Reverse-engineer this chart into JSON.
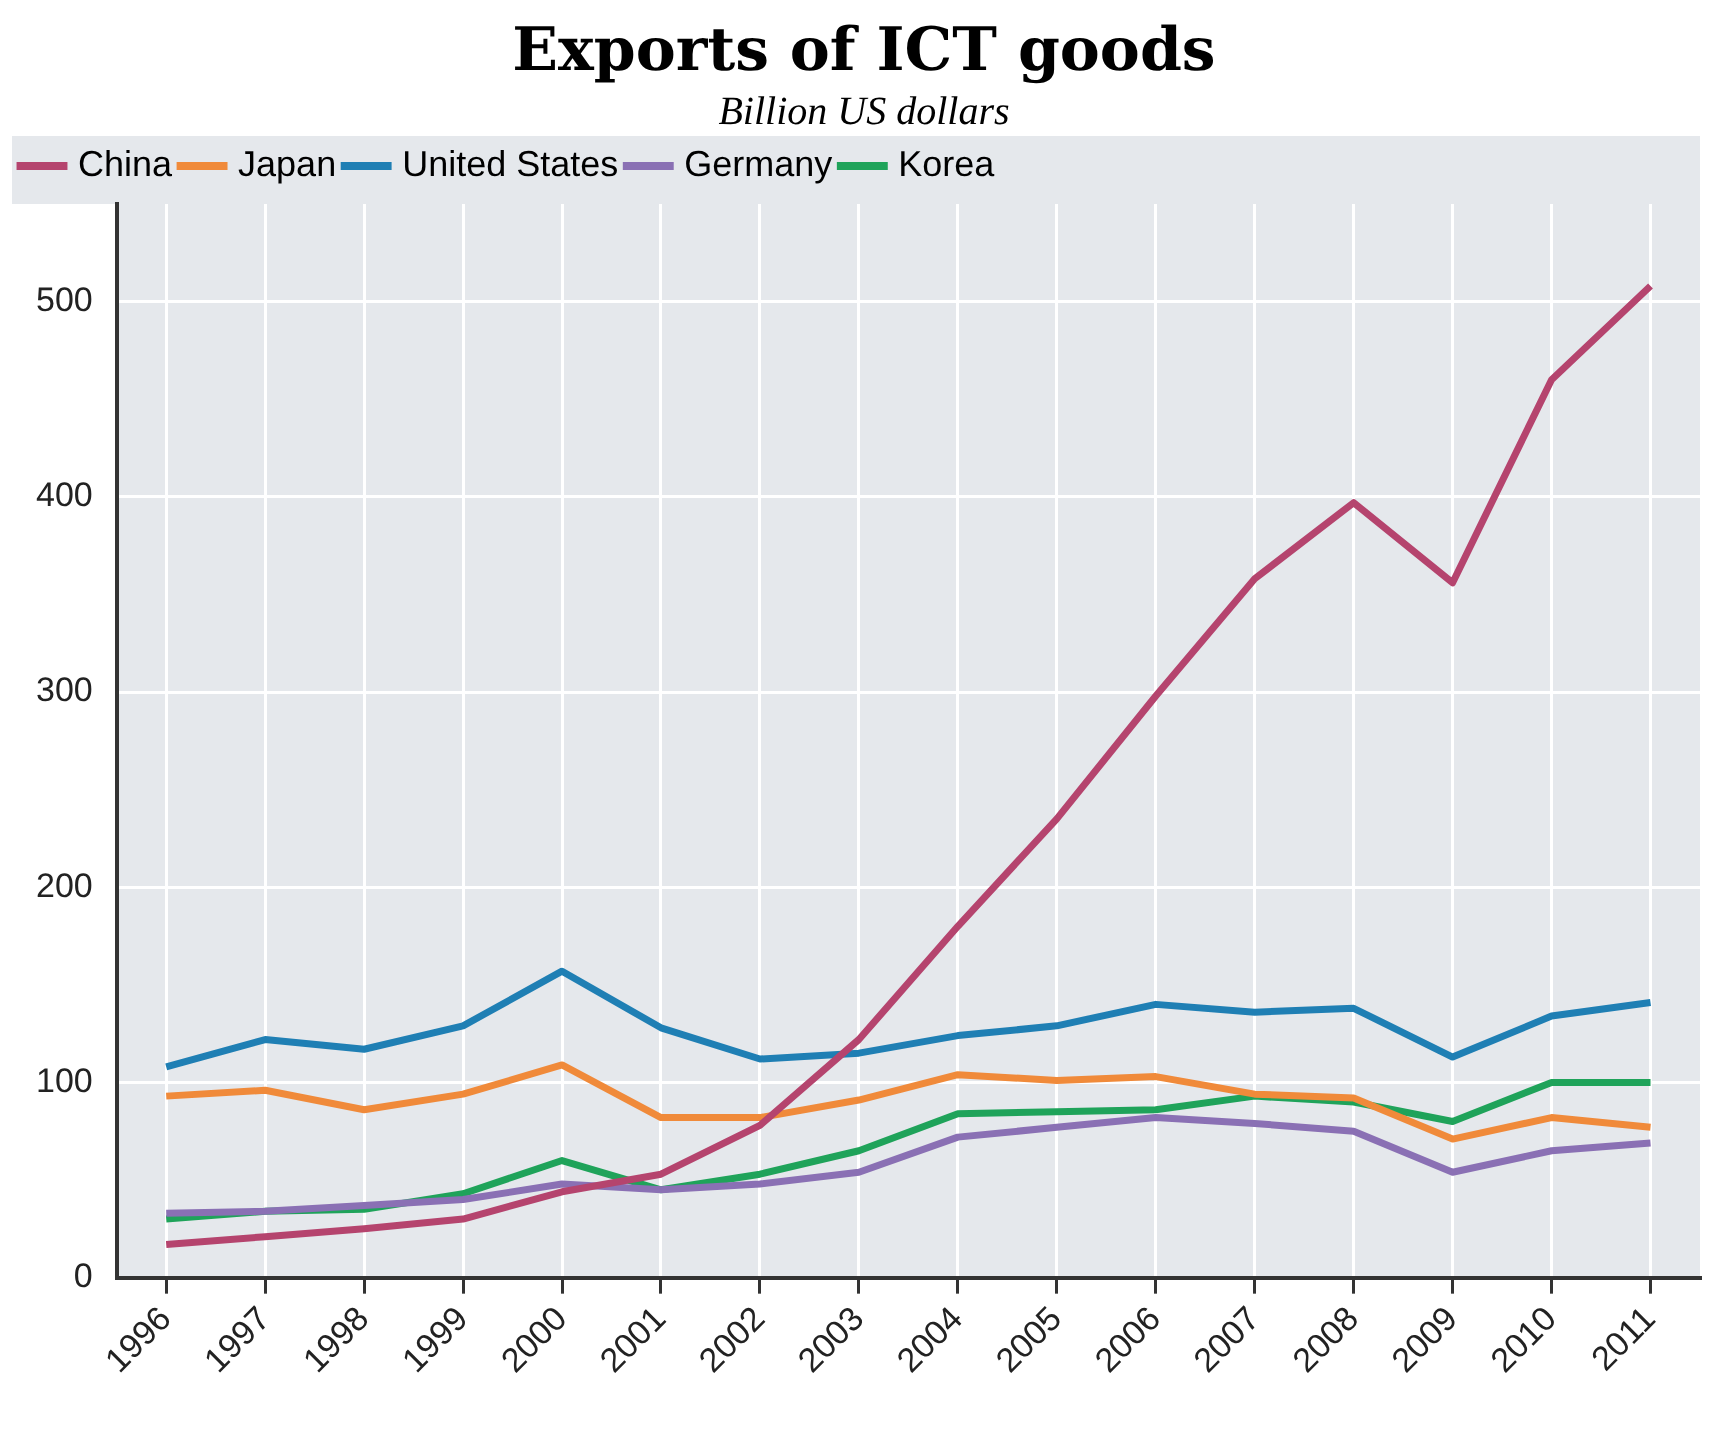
{
  "chart_data": {
    "type": "line",
    "title": "Exports of ICT goods",
    "subtitle": "Billion US dollars",
    "categories": [
      "1996",
      "1997",
      "1998",
      "1999",
      "2000",
      "2001",
      "2002",
      "2003",
      "2004",
      "2005",
      "2006",
      "2007",
      "2008",
      "2009",
      "2010",
      "2011"
    ],
    "series": [
      {
        "name": "China",
        "color": "#b5446e",
        "values": [
          17,
          21,
          25,
          30,
          44,
          53,
          78,
          122,
          180,
          235,
          298,
          358,
          397,
          356,
          460,
          508
        ]
      },
      {
        "name": "Japan",
        "color": "#f08a3a",
        "values": [
          93,
          96,
          86,
          94,
          109,
          82,
          82,
          91,
          104,
          101,
          103,
          94,
          92,
          71,
          82,
          77
        ]
      },
      {
        "name": "United States",
        "color": "#1f7fb4",
        "values": [
          108,
          122,
          117,
          129,
          157,
          128,
          112,
          115,
          124,
          129,
          140,
          136,
          138,
          113,
          134,
          141
        ]
      },
      {
        "name": "Germany",
        "color": "#8a70b4",
        "values": [
          33,
          34,
          37,
          40,
          48,
          45,
          48,
          54,
          72,
          77,
          82,
          79,
          75,
          54,
          65,
          69
        ]
      },
      {
        "name": "Korea",
        "color": "#1fa35a",
        "values": [
          30,
          34,
          35,
          43,
          60,
          45,
          53,
          65,
          84,
          85,
          86,
          93,
          90,
          80,
          100,
          100
        ]
      }
    ],
    "ylim": [
      0,
      550
    ],
    "yticks": [
      0,
      100,
      200,
      300,
      400,
      500
    ],
    "grid": true,
    "legend": "top",
    "marker": "none",
    "line_style": "solid"
  }
}
